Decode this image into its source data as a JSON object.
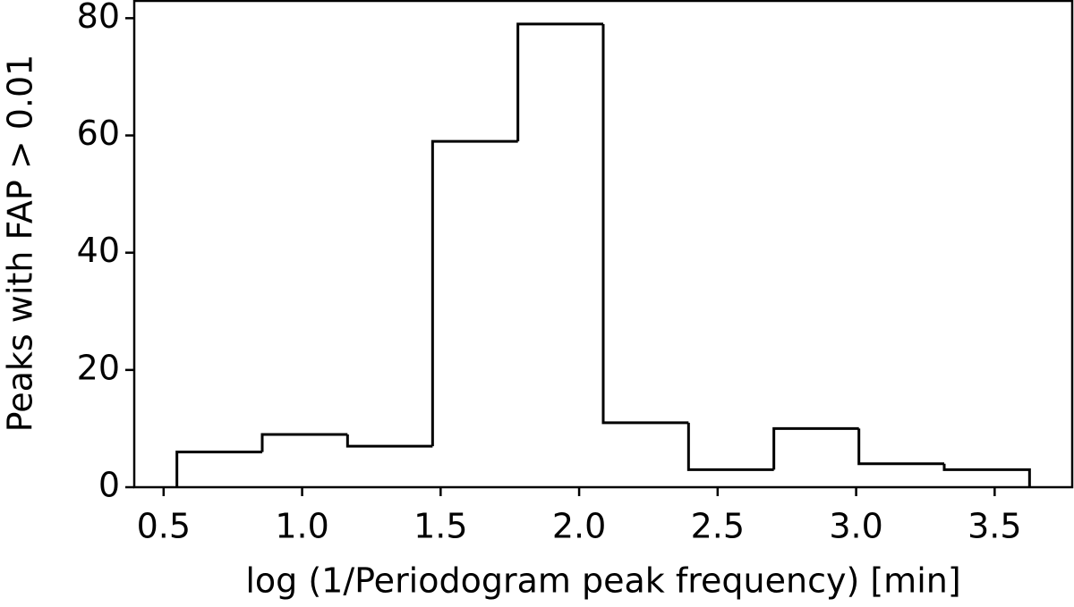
{
  "chart_data": {
    "type": "histogram",
    "xlabel": "log (1/Periodogram peak frequency) [min]",
    "ylabel": "Peaks with FAP > 0.01",
    "bins": [
      0.548,
      0.856,
      1.164,
      1.471,
      1.779,
      2.087,
      2.395,
      2.703,
      3.01,
      3.318,
      3.626
    ],
    "values": [
      6,
      9,
      7,
      59,
      79,
      11,
      3,
      10,
      4,
      3
    ],
    "color": "#000000",
    "xlim": [
      0.394,
      3.78
    ],
    "ylim": [
      0,
      82.95
    ],
    "xticks": [
      0.5,
      {
        "value": 1,
        "label": "1.0"
      },
      1.5,
      {
        "value": 2,
        "label": "2.0"
      },
      2.5,
      {
        "value": 3,
        "label": "3.0"
      },
      3.5
    ],
    "yticks": [
      0,
      20,
      40,
      60,
      80
    ]
  }
}
